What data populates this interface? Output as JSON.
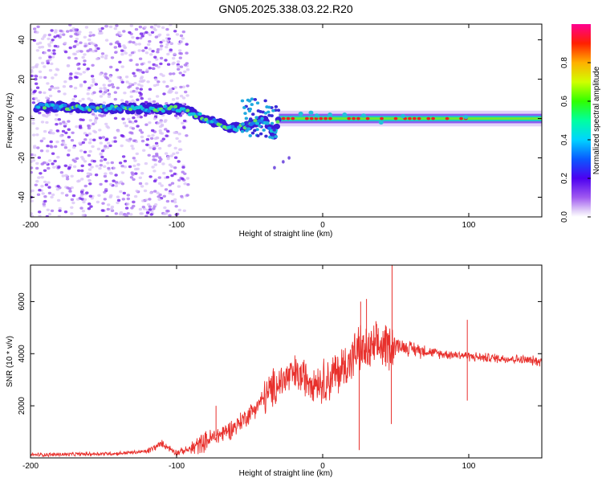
{
  "title": "GN05.2025.338.03.22.R20",
  "chart_data": [
    {
      "type": "heatmap",
      "name": "spectrogram",
      "xlabel": "Height of straight line (km)",
      "ylabel": "Frequency (Hz)",
      "xlim": [
        -200,
        150
      ],
      "ylim": [
        -50,
        48
      ],
      "xticks": [
        -200,
        -100,
        0,
        100
      ],
      "yticks": [
        -40,
        -20,
        0,
        20,
        40
      ],
      "colorbar": {
        "label": "Normalized spectral amplitude",
        "range": [
          0,
          1
        ],
        "ticks": [
          "0.0",
          "0.2",
          "0.4",
          "0.6",
          "0.8"
        ],
        "tick_values": [
          0,
          0.2,
          0.4,
          0.6,
          0.8
        ]
      },
      "ridge": [
        {
          "x": -200,
          "y": 6
        },
        {
          "x": -180,
          "y": 6
        },
        {
          "x": -160,
          "y": 5
        },
        {
          "x": -140,
          "y": 5
        },
        {
          "x": -120,
          "y": 5
        },
        {
          "x": -100,
          "y": 5
        },
        {
          "x": -90,
          "y": 3
        },
        {
          "x": -80,
          "y": 0
        },
        {
          "x": -70,
          "y": -3
        },
        {
          "x": -60,
          "y": -5
        },
        {
          "x": -50,
          "y": -3
        },
        {
          "x": -40,
          "y": -1
        },
        {
          "x": -33,
          "y": -8
        },
        {
          "x": -30,
          "y": 0
        },
        {
          "x": 0,
          "y": 0
        },
        {
          "x": 50,
          "y": 0
        },
        {
          "x": 100,
          "y": 0
        },
        {
          "x": 150,
          "y": 0
        }
      ],
      "noise_region": {
        "x_from": -200,
        "x_to": -92
      }
    },
    {
      "type": "line",
      "name": "snr",
      "xlabel": "Height of straight line (km)",
      "ylabel": "SNR (10 * v/v)",
      "xlim": [
        -200,
        150
      ],
      "ylim": [
        0,
        7400
      ],
      "xticks": [
        -200,
        -100,
        0,
        100
      ],
      "yticks": [
        2000,
        4000,
        6000
      ],
      "color": "#e8302c",
      "series": [
        {
          "name": "SNR",
          "x": [
            -200,
            -180,
            -160,
            -140,
            -120,
            -110,
            -100,
            -90,
            -80,
            -70,
            -60,
            -50,
            -40,
            -30,
            -20,
            -10,
            0,
            10,
            20,
            25,
            30,
            40,
            50,
            60,
            80,
            95,
            100,
            110,
            130,
            150
          ],
          "values": [
            120,
            130,
            150,
            170,
            250,
            550,
            200,
            350,
            650,
            900,
            1200,
            1700,
            2300,
            2900,
            3200,
            3050,
            2900,
            3250,
            3800,
            4200,
            4050,
            4300,
            4350,
            4200,
            4000,
            3950,
            3900,
            3850,
            3800,
            3700
          ]
        }
      ],
      "spikes": [
        {
          "x": -73,
          "value": 2000
        },
        {
          "x": 26,
          "value": 6000
        },
        {
          "x": 30,
          "value": 6100
        },
        {
          "x": 47.5,
          "value": 7400
        },
        {
          "x": 47,
          "value": 1300
        },
        {
          "x": 25,
          "value": 300
        },
        {
          "x": 99,
          "value": 5300
        },
        {
          "x": 99,
          "value": 2200
        }
      ]
    }
  ]
}
